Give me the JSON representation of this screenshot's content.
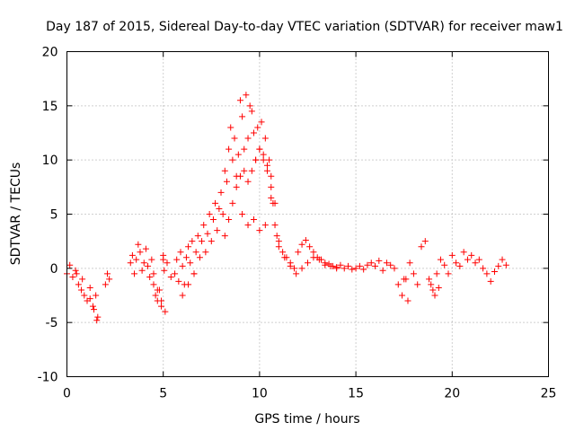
{
  "chart_data": {
    "type": "scatter",
    "title": "Day 187 of 2015, Sidereal Day-to-day VTEC variation (SDTVAR) for receiver maw1",
    "xlabel": "GPS time / hours",
    "ylabel": "SDTVAR / TECUs",
    "xlim": [
      0,
      25
    ],
    "ylim": [
      -10,
      20
    ],
    "x_ticks": [
      0,
      5,
      10,
      15,
      20,
      25
    ],
    "y_ticks": [
      -10,
      -5,
      0,
      5,
      10,
      15,
      20
    ],
    "grid": true,
    "marker": "+",
    "series": [
      {
        "name": "SDTVAR",
        "color": "#ff0000",
        "x": [
          0.0,
          0.15,
          0.3,
          0.45,
          0.6,
          0.75,
          0.9,
          1.05,
          1.2,
          1.35,
          1.5,
          1.55,
          2.0,
          2.1,
          2.2,
          3.3,
          3.4,
          3.5,
          3.6,
          3.7,
          3.8,
          3.9,
          4.0,
          4.1,
          4.2,
          4.3,
          4.4,
          4.5,
          4.6,
          4.7,
          4.8,
          4.9,
          5.0,
          5.1,
          5.6,
          5.7,
          5.8,
          5.9,
          6.0,
          6.1,
          6.2,
          6.3,
          6.4,
          6.5,
          6.6,
          6.7,
          6.8,
          6.9,
          7.0,
          7.1,
          7.2,
          7.3,
          7.4,
          7.5,
          7.6,
          7.7,
          7.8,
          7.9,
          8.0,
          8.1,
          8.2,
          8.3,
          8.4,
          8.5,
          8.6,
          8.7,
          8.8,
          8.9,
          9.0,
          9.1,
          9.2,
          9.3,
          9.4,
          9.5,
          9.6,
          9.7,
          9.8,
          9.9,
          10.0,
          10.1,
          10.2,
          10.3,
          10.4,
          10.5,
          10.6,
          10.7,
          10.8,
          10.9,
          11.0,
          11.2,
          11.4,
          11.6,
          11.8,
          12.0,
          12.2,
          12.4,
          12.6,
          12.8,
          13.0,
          13.2,
          13.4,
          13.6,
          13.8,
          14.0,
          14.2,
          14.4,
          14.6,
          14.8,
          15.0,
          15.2,
          15.4,
          15.6,
          15.8,
          16.0,
          16.2,
          16.4,
          16.6,
          16.8,
          17.0,
          17.2,
          17.4,
          17.6,
          17.8,
          18.0,
          18.2,
          18.4,
          18.6,
          18.8,
          19.0,
          19.2,
          19.4,
          19.6,
          19.8,
          20.0,
          20.2,
          20.4,
          20.6,
          20.8,
          21.0,
          21.2,
          21.4,
          21.6,
          21.8,
          22.0,
          22.2,
          22.4,
          22.6,
          22.8,
          8.2,
          8.4,
          8.6,
          8.8,
          9.0,
          9.2,
          9.4,
          9.6,
          9.8,
          10.0,
          10.2,
          10.4,
          10.6,
          10.8,
          11.0,
          11.3,
          11.6,
          11.9,
          12.2,
          12.5,
          12.8,
          13.1,
          13.4,
          13.7,
          14.0,
          4.5,
          4.7,
          4.9,
          5.0,
          5.05,
          5.2,
          5.4,
          6.0,
          6.3,
          6.6,
          9.1,
          9.4,
          9.7,
          10.0,
          10.3,
          10.6,
          17.5,
          17.7,
          18.9,
          19.1,
          19.3,
          1.6,
          1.4,
          1.2,
          0.8,
          0.5
        ],
        "y": [
          -0.5,
          0.3,
          -0.8,
          -0.2,
          -1.5,
          -2.0,
          -2.5,
          -3.0,
          -1.8,
          -3.5,
          -2.5,
          -4.8,
          -1.5,
          -0.5,
          -1.0,
          0.5,
          1.2,
          -0.5,
          0.8,
          2.2,
          1.5,
          -0.2,
          0.5,
          1.8,
          0.2,
          -0.8,
          0.8,
          -1.5,
          -2.5,
          -3.0,
          -2.0,
          -3.5,
          0.8,
          -4.0,
          -0.5,
          0.8,
          -1.2,
          1.5,
          0.2,
          -1.5,
          1.0,
          2.0,
          0.5,
          2.5,
          -0.5,
          1.5,
          3.0,
          1.0,
          2.5,
          4.0,
          1.5,
          3.2,
          5.0,
          2.5,
          4.5,
          6.0,
          3.5,
          5.5,
          7.0,
          5.0,
          9.0,
          8.0,
          11.0,
          13.0,
          10.0,
          12.0,
          8.5,
          10.5,
          15.5,
          14.0,
          11.0,
          16.0,
          12.0,
          15.0,
          14.5,
          12.5,
          10.0,
          13.0,
          11.0,
          13.5,
          10.5,
          12.0,
          9.0,
          10.0,
          7.5,
          6.0,
          4.0,
          3.0,
          2.0,
          1.5,
          1.0,
          0.5,
          0.0,
          1.5,
          2.2,
          2.6,
          2.0,
          1.5,
          1.0,
          0.8,
          0.5,
          0.4,
          0.2,
          0.1,
          0.3,
          0.0,
          0.2,
          -0.1,
          0.0,
          0.2,
          -0.1,
          0.3,
          0.5,
          0.2,
          0.7,
          -0.2,
          0.5,
          0.3,
          0.0,
          -1.5,
          -2.5,
          -1.0,
          0.5,
          -0.5,
          -1.5,
          2.0,
          2.5,
          -1.0,
          -2.0,
          -0.5,
          0.8,
          0.3,
          -0.5,
          1.2,
          0.5,
          0.2,
          1.5,
          0.8,
          1.2,
          0.5,
          0.8,
          0.0,
          -0.5,
          -1.2,
          -0.3,
          0.2,
          0.8,
          0.3,
          3.0,
          4.5,
          6.0,
          7.5,
          8.5,
          9.0,
          8.0,
          9.0,
          10.0,
          11.0,
          10.0,
          9.5,
          8.5,
          6.0,
          2.5,
          1.0,
          0.2,
          -0.5,
          0.0,
          0.5,
          1.0,
          0.8,
          0.3,
          0.2,
          0.0,
          -0.5,
          -2.0,
          -3.0,
          1.2,
          -0.2,
          0.5,
          -0.8,
          -2.5,
          -1.5,
          -0.5,
          5.0,
          4.0,
          4.5,
          3.5,
          4.0,
          6.5,
          -1.0,
          -3.0,
          -1.5,
          -2.5,
          -1.8,
          -4.5,
          -3.8,
          -2.8,
          -1.0,
          -0.5
        ]
      }
    ]
  }
}
